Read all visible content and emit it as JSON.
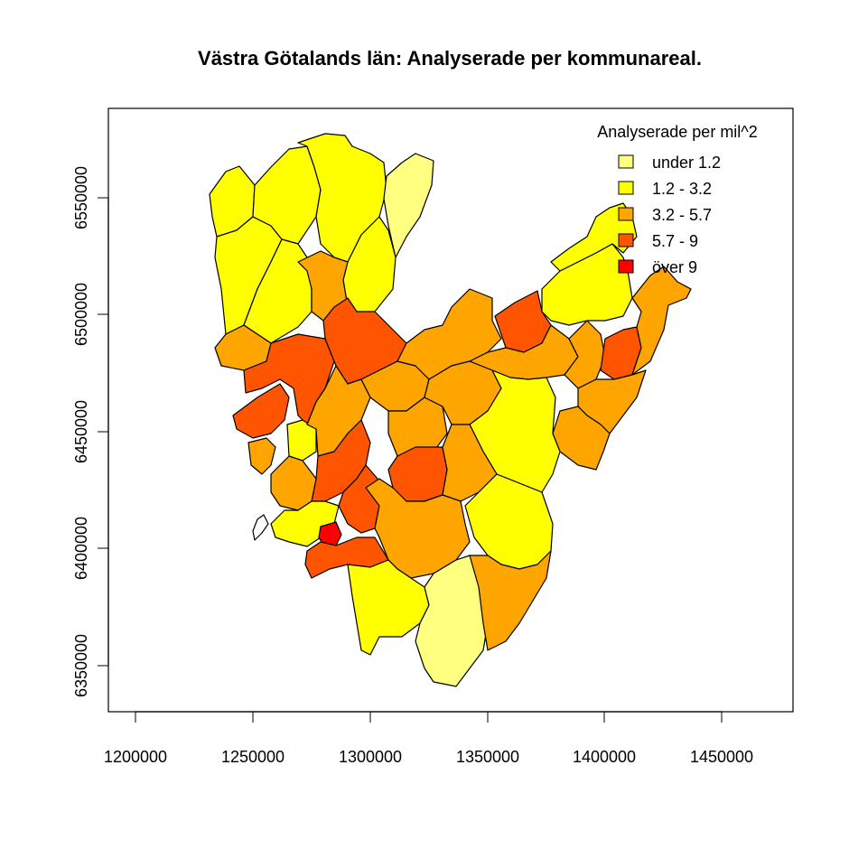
{
  "title": "Västra Götalands län: Analyserade per kommunareal.",
  "axes": {
    "x_ticks": [
      "1200000",
      "1250000",
      "1300000",
      "1350000",
      "1400000",
      "1450000"
    ],
    "y_ticks": [
      "6350000",
      "6400000",
      "6450000",
      "6500000",
      "6550000"
    ],
    "x_range": [
      1188000,
      1480000
    ],
    "y_range": [
      6332000,
      6580000
    ]
  },
  "legend": {
    "title": "Analyserade per mil^2",
    "placement": "top-right",
    "items": [
      {
        "label": "under 1.2",
        "color": "#FFFF80"
      },
      {
        "label": "1.2 - 3.2",
        "color": "#FFFF00"
      },
      {
        "label": "3.2 - 5.7",
        "color": "#FFA500"
      },
      {
        "label": "5.7 - 9",
        "color": "#FF5500"
      },
      {
        "label": "över 9",
        "color": "#FF0000"
      }
    ]
  },
  "map": {
    "region": "Västra Götalands län",
    "class_colors": [
      "#FFFF80",
      "#FFFF00",
      "#FFA500",
      "#FF5500",
      "#FF0000"
    ]
  }
}
